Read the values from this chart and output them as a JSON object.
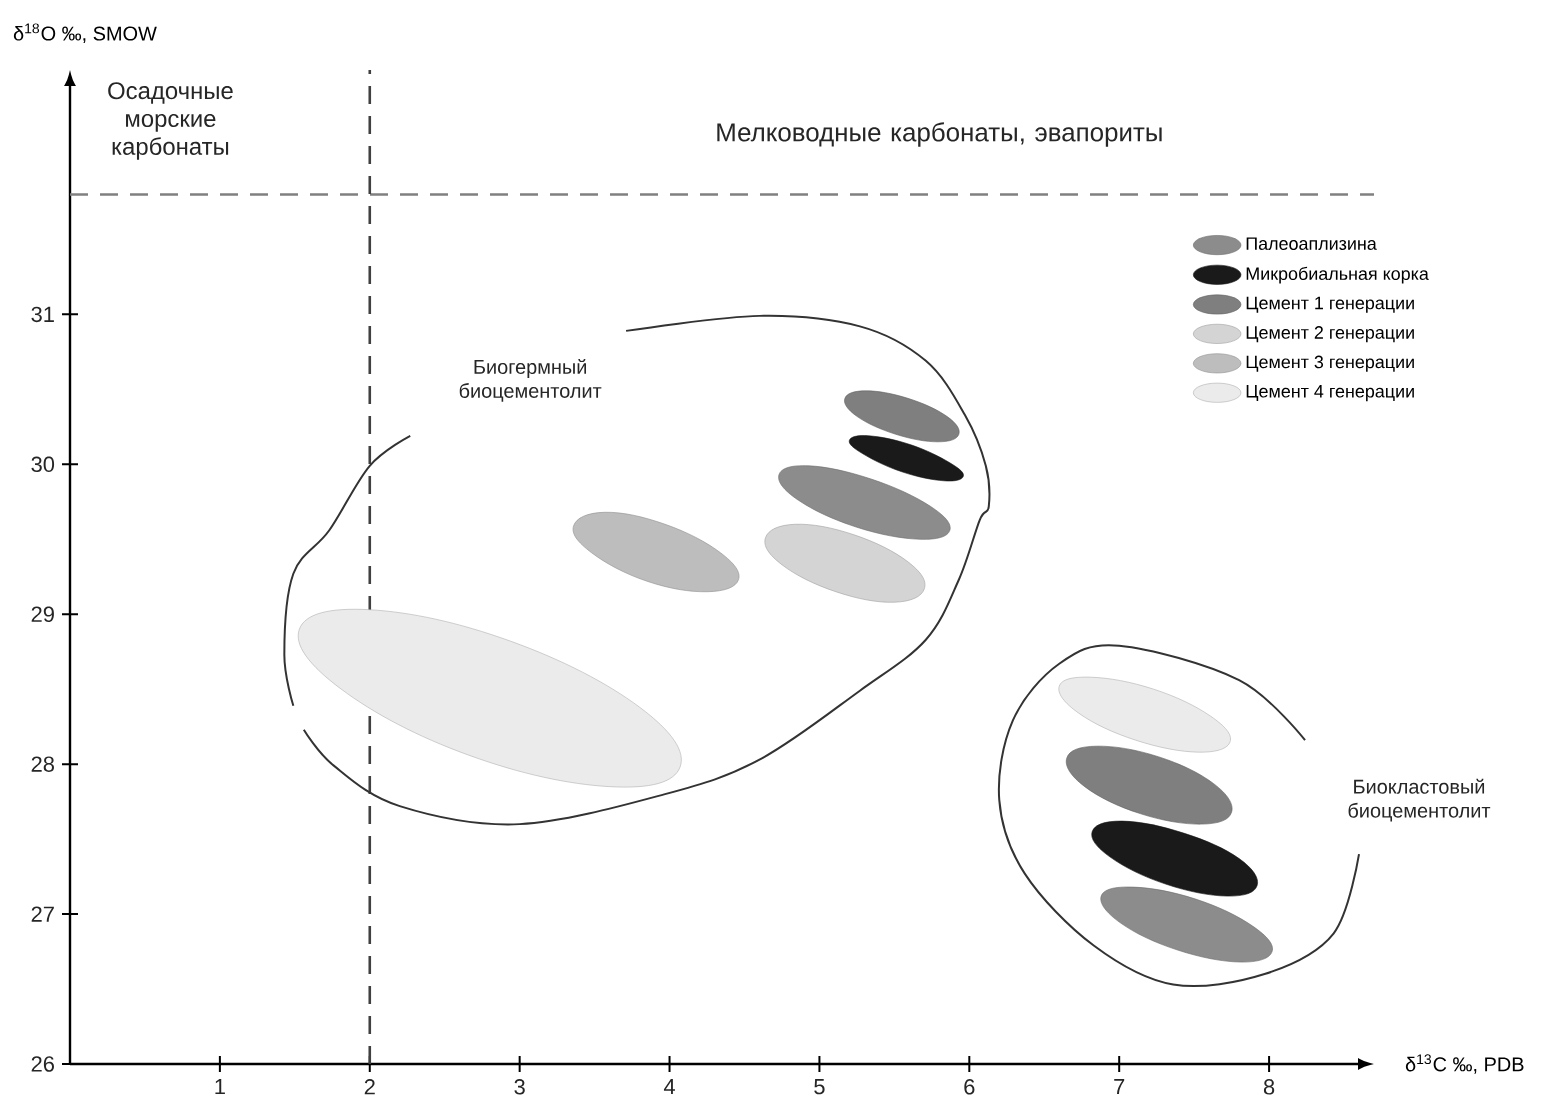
{
  "chart_data": {
    "type": "area",
    "xlabel": "δ$^{13}$C ‰, PDB",
    "ylabel": "δ$^{18}$O ‰, SMOW",
    "xlim": [
      0,
      8.7
    ],
    "ylim": [
      26,
      32.63
    ],
    "xticks": [
      1,
      2,
      3,
      4,
      5,
      6,
      7,
      8
    ],
    "yticks": [
      26,
      27,
      28,
      29,
      30,
      31
    ],
    "legend": "top right",
    "marker": "none",
    "ref_lines": [
      {
        "axis": "y",
        "value": 31.8,
        "color": "#808080",
        "line_style": "dashed"
      },
      {
        "axis": "x",
        "value": 2,
        "color": "#404040",
        "line_style": "dashed"
      }
    ],
    "annotations": [
      "Осадочные морские карбонаты",
      "Мелководные карбонаты, эвапориты",
      "Биогермный биоцементолит",
      "Биокластовый биоцементолит"
    ],
    "series": [
      {
        "name": "Палеоаплизина",
        "color": "#8c8c8c",
        "x": [
          5.87,
          5.74,
          5.35,
          4.93,
          4.73,
          4.86,
          5.25,
          5.67,
          null,
          8.02,
          7.89,
          7.51,
          7.09,
          6.88,
          7.01,
          7.39,
          7.81
        ],
        "values": [
          29.56,
          29.72,
          29.9,
          29.99,
          29.93,
          29.76,
          29.58,
          29.5,
          null,
          26.75,
          26.92,
          27.1,
          27.18,
          27.12,
          26.94,
          26.76,
          26.68
        ]
      },
      {
        "name": "Микробиальная корка",
        "color": "#1a1a1a",
        "x": [
          5.96,
          5.87,
          5.61,
          5.33,
          5.2,
          5.29,
          5.55,
          5.83,
          null,
          7.92,
          7.8,
          7.43,
          7.02,
          6.82,
          6.94,
          7.31,
          7.72
        ],
        "values": [
          29.92,
          30.01,
          30.13,
          30.19,
          30.16,
          30.07,
          29.95,
          29.89,
          null,
          27.19,
          27.37,
          27.54,
          27.62,
          27.55,
          27.38,
          27.2,
          27.12
        ]
      },
      {
        "name": "Цемент 1 генерации",
        "color": "#7f7f7f",
        "x": [
          5.93,
          5.85,
          5.59,
          5.31,
          5.17,
          5.25,
          5.51,
          5.79,
          null,
          7.75,
          7.63,
          7.26,
          6.85,
          6.65,
          6.77,
          7.14,
          7.55
        ],
        "values": [
          30.2,
          30.32,
          30.44,
          30.49,
          30.44,
          30.32,
          30.2,
          30.15,
          null,
          27.68,
          27.87,
          28.05,
          28.12,
          28.04,
          27.85,
          27.67,
          27.6
        ]
      },
      {
        "name": "Цемент 2 генерации",
        "color": "#d4d4d4",
        "x": [
          5.7,
          5.59,
          5.23,
          4.84,
          4.64,
          4.75,
          5.11,
          5.5
        ],
        "values": [
          29.17,
          29.35,
          29.53,
          29.6,
          29.51,
          29.33,
          29.15,
          29.08
        ]
      },
      {
        "name": "Цемент 3 генерации",
        "color": "#bdbdbd",
        "x": [
          4.46,
          4.34,
          3.97,
          3.57,
          3.36,
          3.48,
          3.85,
          4.25
        ],
        "values": [
          29.23,
          29.41,
          29.6,
          29.68,
          29.59,
          29.41,
          29.22,
          29.15
        ]
      },
      {
        "name": "Цемент 4 генерации",
        "color": "#ebebeb",
        "x": [
          4.07,
          3.8,
          2.94,
          2.0,
          1.53,
          1.81,
          2.66,
          3.6,
          null,
          7.74,
          7.61,
          7.23,
          6.81,
          6.6,
          6.73,
          7.11,
          7.53
        ],
        "values": [
          27.98,
          28.38,
          28.82,
          29.03,
          28.9,
          28.5,
          28.06,
          27.85,
          null,
          28.15,
          28.32,
          28.5,
          28.58,
          28.52,
          28.34,
          28.16,
          28.08
        ]
      },
      {
        "type": "line",
        "color": "#333333",
        "x": [
          3.71,
          4.6,
          5.27,
          5.71,
          5.97,
          6.11,
          6.13,
          6.07,
          5.93,
          5.71,
          5.27,
          4.6,
          3.97,
          3.0,
          2.2,
          1.76,
          1.56,
          null,
          1.49,
          1.43,
          1.49,
          1.73,
          2.0,
          2.27
        ],
        "values": [
          30.89,
          30.99,
          30.92,
          30.69,
          30.33,
          29.99,
          29.72,
          29.63,
          29.23,
          28.83,
          28.49,
          28.03,
          27.8,
          27.6,
          27.72,
          27.99,
          28.23,
          null,
          28.39,
          28.73,
          29.27,
          29.56,
          29.99,
          30.19
        ]
      },
      {
        "type": "line",
        "color": "#333333",
        "x": [
          8.24,
          7.8,
          7.0,
          6.6,
          6.29,
          6.2,
          6.37,
          6.83,
          7.36,
          7.97,
          8.43,
          8.6
        ],
        "values": [
          28.16,
          28.56,
          28.79,
          28.67,
          28.29,
          27.76,
          27.27,
          26.79,
          26.53,
          26.6,
          26.87,
          27.4
        ]
      }
    ]
  }
}
